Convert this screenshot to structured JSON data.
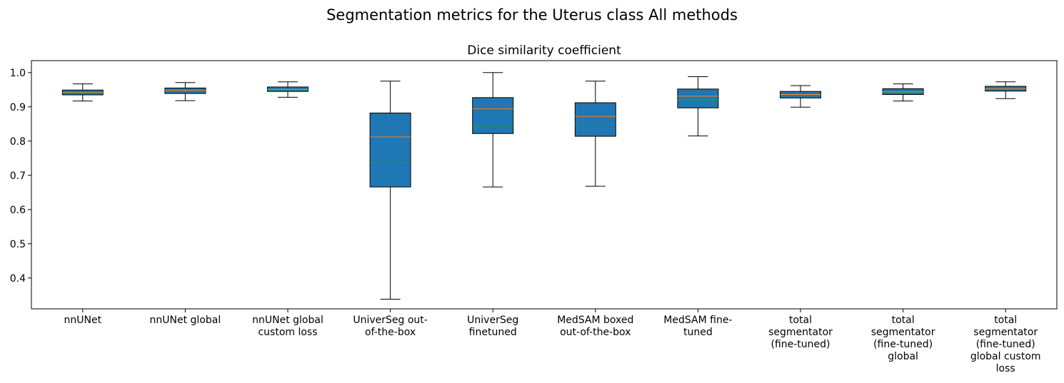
{
  "figure_title": "Segmentation metrics for the Uterus class All methods",
  "chart_data": {
    "type": "box",
    "title": "Dice similarity coefficient",
    "xlabel": "",
    "ylabel": "",
    "ylim": [
      0.31,
      1.035
    ],
    "yticks": [
      0.4,
      0.5,
      0.6,
      0.7,
      0.8,
      0.9,
      1.0
    ],
    "ytick_labels": [
      "0.4",
      "0.5",
      "0.6",
      "0.7",
      "0.8",
      "0.9",
      "1.0"
    ],
    "grid": false,
    "show_means": true,
    "colors": {
      "box_fill": "#1f77b4",
      "median": "#ff7f0e",
      "mean": "#2ca02c",
      "edge": "#000000"
    },
    "categories": [
      [
        "nnUNet"
      ],
      [
        "nnUNet global"
      ],
      [
        "nnUNet global",
        "custom loss"
      ],
      [
        "UniverSeg out-",
        "of-the-box"
      ],
      [
        "UniverSeg",
        "finetuned"
      ],
      [
        "MedSAM boxed",
        "out-of-the-box"
      ],
      [
        "MedSAM fine-",
        "tuned"
      ],
      [
        "total",
        "segmentator",
        "(fine-tuned)"
      ],
      [
        "total",
        "segmentator",
        "(fine-tuned)",
        "global"
      ],
      [
        "total",
        "segmentator",
        "(fine-tuned)",
        "global custom",
        "loss"
      ]
    ],
    "boxes": [
      {
        "whislo": 0.917,
        "q1": 0.935,
        "med": 0.942,
        "mean": 0.941,
        "q3": 0.949,
        "whishi": 0.967
      },
      {
        "whislo": 0.918,
        "q1": 0.939,
        "med": 0.948,
        "mean": 0.946,
        "q3": 0.955,
        "whishi": 0.971
      },
      {
        "whislo": 0.928,
        "q1": 0.945,
        "med": 0.951,
        "mean": 0.949,
        "q3": 0.958,
        "whishi": 0.973
      },
      {
        "whislo": 0.338,
        "q1": 0.666,
        "med": 0.812,
        "mean": 0.737,
        "q3": 0.882,
        "whishi": 0.975
      },
      {
        "whislo": 0.666,
        "q1": 0.822,
        "med": 0.894,
        "mean": 0.843,
        "q3": 0.927,
        "whishi": 1.0
      },
      {
        "whislo": 0.668,
        "q1": 0.814,
        "med": 0.872,
        "mean": 0.851,
        "q3": 0.912,
        "whishi": 0.975
      },
      {
        "whislo": 0.815,
        "q1": 0.897,
        "med": 0.931,
        "mean": 0.92,
        "q3": 0.952,
        "whishi": 0.988
      },
      {
        "whislo": 0.899,
        "q1": 0.926,
        "med": 0.936,
        "mean": 0.933,
        "q3": 0.945,
        "whishi": 0.962
      },
      {
        "whislo": 0.917,
        "q1": 0.936,
        "med": 0.944,
        "mean": 0.941,
        "q3": 0.953,
        "whishi": 0.967
      },
      {
        "whislo": 0.924,
        "q1": 0.946,
        "med": 0.953,
        "mean": 0.95,
        "q3": 0.96,
        "whishi": 0.973
      }
    ]
  }
}
